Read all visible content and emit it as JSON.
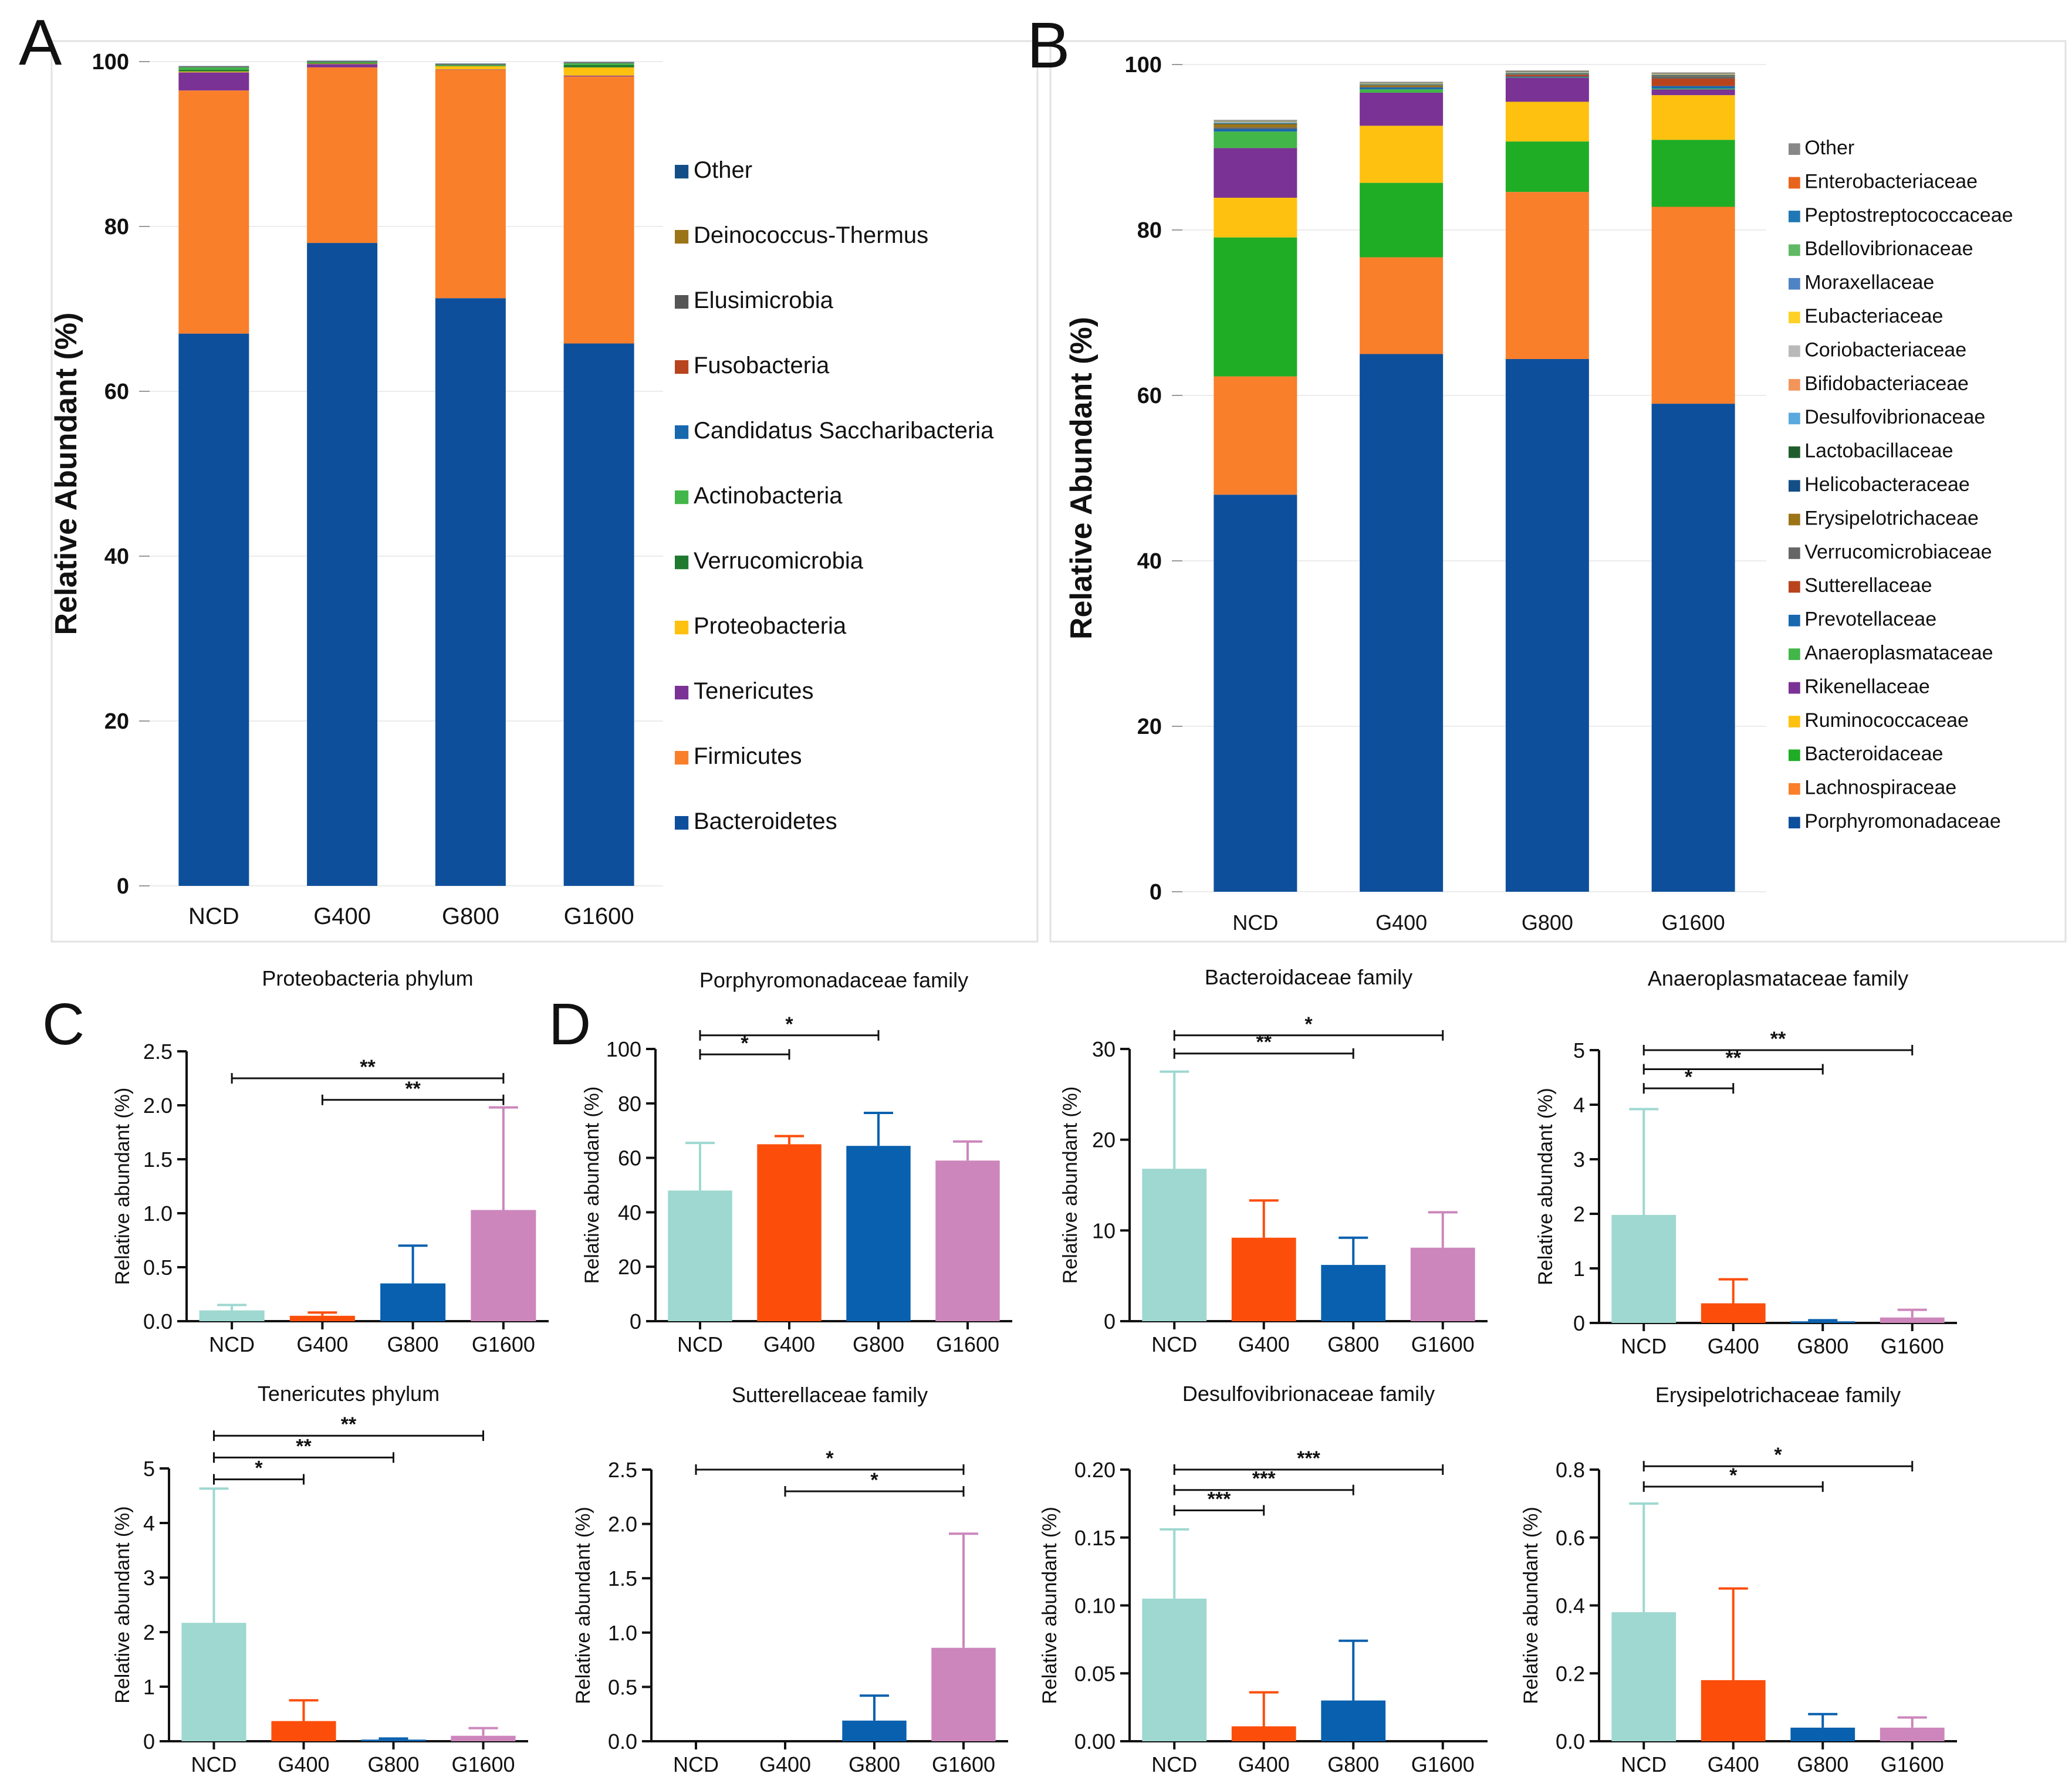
{
  "panel_letters": [
    "A",
    "B",
    "C",
    "D"
  ],
  "chart_data": [
    {
      "id": "A",
      "type": "stacked_bar",
      "ylabel": "Relative Abundant (%)",
      "ylim": [
        0,
        100
      ],
      "yticks": [
        0,
        20,
        40,
        60,
        80,
        100
      ],
      "categories": [
        "NCD",
        "G400",
        "G800",
        "G1600"
      ],
      "series": [
        {
          "name": "Bacteroidetes",
          "color": "#0e4f9c",
          "values": [
            67.0,
            78.0,
            71.3,
            65.8
          ]
        },
        {
          "name": "Firmicutes",
          "color": "#f97f2b",
          "values": [
            29.5,
            21.3,
            27.7,
            32.4
          ]
        },
        {
          "name": "Tenericutes",
          "color": "#7a3295",
          "values": [
            2.2,
            0.4,
            0.05,
            0.1
          ]
        },
        {
          "name": "Proteobacteria",
          "color": "#fec10f",
          "values": [
            0.1,
            0.05,
            0.4,
            1.0
          ]
        },
        {
          "name": "Verrucomicrobia",
          "color": "#1f7a2f",
          "values": [
            0.2,
            0.1,
            0.05,
            0.3
          ]
        },
        {
          "name": "Actinobacteria",
          "color": "#43b649",
          "values": [
            0.3,
            0.1,
            0.1,
            0.2
          ]
        },
        {
          "name": "Candidatus  Saccharibacteria",
          "color": "#1868ad",
          "values": [
            0.05,
            0.05,
            0.05,
            0.05
          ]
        },
        {
          "name": "Fusobacteria",
          "color": "#b8441d",
          "values": [
            0.02,
            0.02,
            0.02,
            0.02
          ]
        },
        {
          "name": "Elusimicrobia",
          "color": "#555555",
          "values": [
            0.02,
            0.02,
            0.02,
            0.02
          ]
        },
        {
          "name": "Deinococcus-Thermus",
          "color": "#9c7418",
          "values": [
            0.02,
            0.02,
            0.02,
            0.02
          ]
        },
        {
          "name": "Other",
          "color": "#144e86",
          "values": [
            0.05,
            0.05,
            0.05,
            0.05
          ]
        }
      ]
    },
    {
      "id": "B",
      "type": "stacked_bar",
      "ylabel": "Relative Abundant (%)",
      "ylim": [
        0,
        100
      ],
      "yticks": [
        0,
        20,
        40,
        60,
        80,
        100
      ],
      "categories": [
        "NCD",
        "G400",
        "G800",
        "G1600"
      ],
      "series": [
        {
          "name": "Porphyromonadaceae",
          "color": "#0e4f9c",
          "values": [
            48.0,
            65.0,
            64.4,
            59.0
          ]
        },
        {
          "name": "Lachnospiraceae",
          "color": "#f97f2b",
          "values": [
            14.3,
            11.7,
            20.2,
            23.8
          ]
        },
        {
          "name": "Bacteroidaceae",
          "color": "#1fad25",
          "values": [
            16.8,
            9.0,
            6.1,
            8.1
          ]
        },
        {
          "name": "Ruminococcaceae",
          "color": "#fec10f",
          "values": [
            4.8,
            6.9,
            4.8,
            5.4
          ]
        },
        {
          "name": "Rikenellaceae",
          "color": "#7a3295",
          "values": [
            6.0,
            4.0,
            2.9,
            0.7
          ]
        },
        {
          "name": "Anaeroplasmataceae",
          "color": "#43b649",
          "values": [
            2.0,
            0.4,
            0.05,
            0.1
          ]
        },
        {
          "name": "Prevotellaceae",
          "color": "#1868ad",
          "values": [
            0.3,
            0.2,
            0.1,
            0.3
          ]
        },
        {
          "name": "Sutterellaceae",
          "color": "#b8441d",
          "values": [
            0.0,
            0.0,
            0.2,
            0.9
          ]
        },
        {
          "name": "Verrucomicrobiaceae",
          "color": "#666666",
          "values": [
            0.2,
            0.1,
            0.05,
            0.3
          ]
        },
        {
          "name": "Erysipelotrichaceae",
          "color": "#9c7418",
          "values": [
            0.4,
            0.2,
            0.04,
            0.04
          ]
        },
        {
          "name": "Helicobacteraceae",
          "color": "#144e86",
          "values": [
            0.05,
            0.05,
            0.05,
            0.05
          ]
        },
        {
          "name": "Lactobacillaceae",
          "color": "#1f5e2c",
          "values": [
            0.05,
            0.05,
            0.05,
            0.05
          ]
        },
        {
          "name": "Desulfovibrionaceae",
          "color": "#5aa9de",
          "values": [
            0.1,
            0.01,
            0.03,
            0.0
          ]
        },
        {
          "name": "Bifidobacteriaceae",
          "color": "#f2955a",
          "values": [
            0.03,
            0.03,
            0.03,
            0.03
          ]
        },
        {
          "name": "Coriobacteriaceae",
          "color": "#b9b9b9",
          "values": [
            0.03,
            0.03,
            0.03,
            0.03
          ]
        },
        {
          "name": "Eubacteriaceae",
          "color": "#fed126",
          "values": [
            0.03,
            0.03,
            0.03,
            0.03
          ]
        },
        {
          "name": "Moraxellaceae",
          "color": "#4f84c4",
          "values": [
            0.03,
            0.03,
            0.03,
            0.03
          ]
        },
        {
          "name": "Bdellovibrionaceae",
          "color": "#61b864",
          "values": [
            0.03,
            0.03,
            0.03,
            0.03
          ]
        },
        {
          "name": "Peptostreptococcaceae",
          "color": "#1f78b4",
          "values": [
            0.03,
            0.03,
            0.03,
            0.03
          ]
        },
        {
          "name": "Enterobacteriaceae",
          "color": "#e8641c",
          "values": [
            0.03,
            0.03,
            0.03,
            0.03
          ]
        },
        {
          "name": "Other",
          "color": "#888888",
          "values": [
            0.1,
            0.1,
            0.1,
            0.1
          ]
        }
      ]
    },
    {
      "id": "C1",
      "type": "bar",
      "title": "Proteobacteria phylum",
      "ylabel": "Relative abundant (%)",
      "ylim": [
        0,
        2.5
      ],
      "yticks": [
        "0.0",
        "0.5",
        "1.0",
        "1.5",
        "2.0",
        "2.5"
      ],
      "categories": [
        "NCD",
        "G400",
        "G800",
        "G1600"
      ],
      "values": [
        0.1,
        0.05,
        0.35,
        1.03
      ],
      "errors": [
        0.15,
        0.08,
        0.7,
        1.98
      ],
      "sig": [
        {
          "from": 0,
          "to": 3,
          "label": "**",
          "y": 2.25
        },
        {
          "from": 1,
          "to": 3,
          "label": "**",
          "y": 2.05
        }
      ]
    },
    {
      "id": "D1",
      "type": "bar",
      "title": "Porphyromonadaceae family",
      "ylabel": "Relative abundant (%)",
      "ylim": [
        0,
        100
      ],
      "yticks": [
        "0",
        "20",
        "40",
        "60",
        "80",
        "100"
      ],
      "categories": [
        "NCD",
        "G400",
        "G800",
        "G1600"
      ],
      "values": [
        48.0,
        65.0,
        64.4,
        59.0
      ],
      "errors": [
        65.5,
        68.0,
        76.5,
        66.0
      ],
      "sig": [
        {
          "from": 0,
          "to": 2,
          "label": "*",
          "y": 105
        },
        {
          "from": 0,
          "to": 1,
          "label": "*",
          "y": 98
        }
      ]
    },
    {
      "id": "D2",
      "type": "bar",
      "title": "Bacteroidaceae family",
      "ylabel": "Relative abundant (%)",
      "ylim": [
        0,
        30
      ],
      "yticks": [
        "0",
        "10",
        "20",
        "30"
      ],
      "categories": [
        "NCD",
        "G400",
        "G800",
        "G1600"
      ],
      "values": [
        16.8,
        9.2,
        6.2,
        8.1
      ],
      "errors": [
        27.5,
        13.3,
        9.2,
        12.0
      ],
      "sig": [
        {
          "from": 0,
          "to": 3,
          "label": "*",
          "y": 31.5
        },
        {
          "from": 0,
          "to": 2,
          "label": "**",
          "y": 29.5
        }
      ]
    },
    {
      "id": "D3",
      "type": "bar",
      "title": "Anaeroplasmataceae family",
      "ylabel": "Relative abundant (%)",
      "ylim": [
        0,
        5
      ],
      "yticks": [
        "0",
        "1",
        "2",
        "3",
        "4",
        "5"
      ],
      "categories": [
        "NCD",
        "G400",
        "G800",
        "G1600"
      ],
      "values": [
        1.98,
        0.36,
        0.03,
        0.1
      ],
      "errors": [
        3.92,
        0.8,
        0.05,
        0.24
      ],
      "sig": [
        {
          "from": 0,
          "to": 3,
          "label": "**",
          "y": 5.0
        },
        {
          "from": 0,
          "to": 2,
          "label": "**",
          "y": 4.65
        },
        {
          "from": 0,
          "to": 1,
          "label": "*",
          "y": 4.3
        }
      ]
    },
    {
      "id": "C2",
      "type": "bar",
      "title": "Tenericutes phylum",
      "ylabel": "Relative abundant (%)",
      "ylim": [
        0,
        5
      ],
      "yticks": [
        "0",
        "1",
        "2",
        "3",
        "4",
        "5"
      ],
      "categories": [
        "NCD",
        "G400",
        "G800",
        "G1600"
      ],
      "values": [
        2.17,
        0.37,
        0.03,
        0.1
      ],
      "errors": [
        4.63,
        0.75,
        0.05,
        0.24
      ],
      "sig": [
        {
          "from": 0,
          "to": 3,
          "label": "**",
          "y": 5.6
        },
        {
          "from": 0,
          "to": 2,
          "label": "**",
          "y": 5.2
        },
        {
          "from": 0,
          "to": 1,
          "label": "*",
          "y": 4.8
        }
      ]
    },
    {
      "id": "D4",
      "type": "bar",
      "title": "Sutterellaceae family",
      "ylabel": "Relative abundant (%)",
      "ylim": [
        0,
        2.5
      ],
      "yticks": [
        "0.0",
        "0.5",
        "1.0",
        "1.5",
        "2.0",
        "2.5"
      ],
      "categories": [
        "NCD",
        "G400",
        "G800",
        "G1600"
      ],
      "values": [
        0.0,
        0.0,
        0.19,
        0.86
      ],
      "errors": [
        0.0,
        0.0,
        0.42,
        1.91
      ],
      "sig": [
        {
          "from": 0,
          "to": 3,
          "label": "*",
          "y": 2.5
        },
        {
          "from": 1,
          "to": 3,
          "label": "*",
          "y": 2.3
        }
      ]
    },
    {
      "id": "D5",
      "type": "bar",
      "title": "Desulfovibrionaceae family",
      "ylabel": "Relative abundant (%)",
      "ylim": [
        0,
        0.2
      ],
      "yticks": [
        "0.00",
        "0.05",
        "0.10",
        "0.15",
        "0.20"
      ],
      "categories": [
        "NCD",
        "G400",
        "G800",
        "G1600"
      ],
      "values": [
        0.105,
        0.011,
        0.03,
        0.0
      ],
      "errors": [
        0.156,
        0.036,
        0.074,
        0.0
      ],
      "sig": [
        {
          "from": 0,
          "to": 3,
          "label": "***",
          "y": 0.2
        },
        {
          "from": 0,
          "to": 2,
          "label": "***",
          "y": 0.185
        },
        {
          "from": 0,
          "to": 1,
          "label": "***",
          "y": 0.17
        }
      ]
    },
    {
      "id": "D6",
      "type": "bar",
      "title": "Erysipelotrichaceae family",
      "ylabel": "Relative abundant (%)",
      "ylim": [
        0,
        0.8
      ],
      "yticks": [
        "0.0",
        "0.2",
        "0.4",
        "0.6",
        "0.8"
      ],
      "categories": [
        "NCD",
        "G400",
        "G800",
        "G1600"
      ],
      "values": [
        0.38,
        0.18,
        0.04,
        0.04
      ],
      "errors": [
        0.7,
        0.45,
        0.08,
        0.07
      ],
      "sig": [
        {
          "from": 0,
          "to": 3,
          "label": "*",
          "y": 0.81
        },
        {
          "from": 0,
          "to": 2,
          "label": "*",
          "y": 0.75
        }
      ]
    }
  ],
  "group_colors": [
    "#9ed8d0",
    "#fc4e0a",
    "#0960ae",
    "#cc86bb"
  ]
}
